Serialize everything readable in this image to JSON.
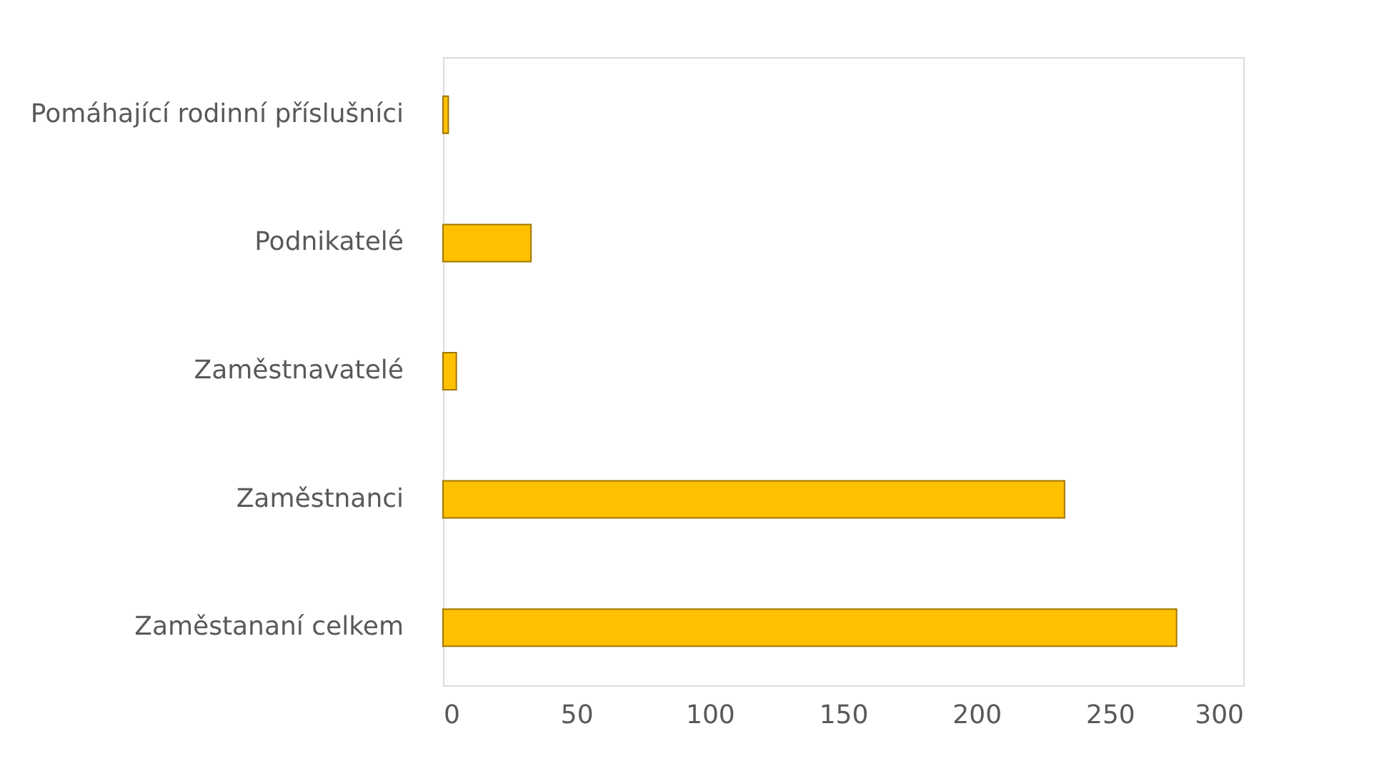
{
  "chart_data": {
    "type": "bar",
    "orientation": "horizontal",
    "categories": [
      "Pomáhající rodinní příslušníci",
      "Podnikatelé",
      "Zaměstnavatelé",
      "Zaměstnanci",
      "Zaměstananí celkem"
    ],
    "values": [
      2,
      33,
      5,
      233,
      275
    ],
    "color": "#ffc000",
    "xlim": [
      0,
      300
    ],
    "xticks": [
      0,
      50,
      100,
      150,
      200,
      250,
      300
    ],
    "grid": false
  }
}
